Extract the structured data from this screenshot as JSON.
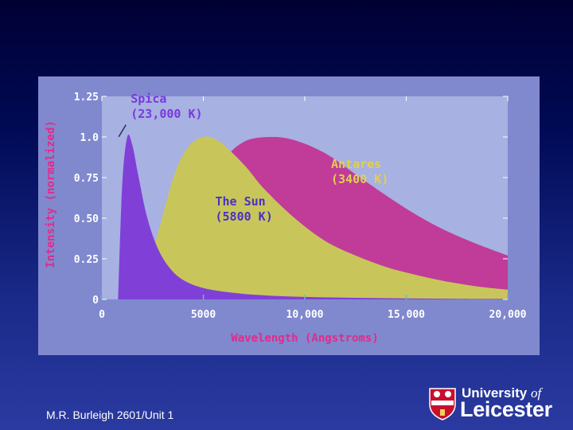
{
  "chart_data": {
    "type": "area",
    "xlabel": "Wavelength (Angstroms)",
    "ylabel": "Intensity (normalized)",
    "xlim": [
      0,
      20000
    ],
    "ylim": [
      0,
      1.25
    ],
    "x_ticks": [
      "0",
      "5000",
      "10,000",
      "15,000",
      "20,000"
    ],
    "x_tick_values": [
      0,
      5000,
      10000,
      15000,
      20000
    ],
    "y_ticks": [
      "0",
      "0.25",
      "0.50",
      "0.75",
      "1.0",
      "1.25"
    ],
    "y_tick_values": [
      0,
      0.25,
      0.5,
      0.75,
      1.0,
      1.25
    ],
    "grid": false,
    "series": [
      {
        "name": "Antares",
        "color": "#c03c98",
        "x": [
          2500,
          4000,
          5000,
          6000,
          7000,
          8300,
          9500,
          11000,
          12500,
          14000,
          15500,
          17000,
          18500,
          20000
        ],
        "values": [
          0.0,
          0.2,
          0.5,
          0.84,
          0.97,
          1.0,
          0.98,
          0.9,
          0.77,
          0.64,
          0.52,
          0.42,
          0.34,
          0.27
        ]
      },
      {
        "name": "The Sun",
        "color": "#c8c65a",
        "x": [
          1500,
          2500,
          3500,
          4200,
          5000,
          5800,
          7000,
          8000,
          9500,
          11000,
          12500,
          14000,
          15500,
          17000,
          18500,
          20000
        ],
        "values": [
          0.0,
          0.3,
          0.74,
          0.93,
          1.0,
          0.97,
          0.83,
          0.68,
          0.5,
          0.36,
          0.27,
          0.2,
          0.15,
          0.11,
          0.08,
          0.06
        ]
      },
      {
        "name": "Spica",
        "color": "#8040d8",
        "x": [
          800,
          1000,
          1250,
          1500,
          1800,
          2200,
          2700,
          3300,
          4000,
          5000,
          6500,
          8000,
          10000,
          12500,
          15000,
          17500,
          20000
        ],
        "values": [
          0.0,
          0.7,
          1.0,
          0.95,
          0.76,
          0.52,
          0.33,
          0.2,
          0.12,
          0.07,
          0.04,
          0.025,
          0.015,
          0.01,
          0.006,
          0.004,
          0.003
        ]
      }
    ],
    "annotations": [
      {
        "text_lines": [
          "Spica",
          "(23,000 K)"
        ],
        "color": "#7a38e0",
        "anchor_x": 1500,
        "anchor_y": 1.05
      },
      {
        "text_lines": [
          "The Sun",
          "(5800 K)"
        ],
        "color": "#4a30c8",
        "anchor_x": 7000,
        "anchor_y": 0.5
      },
      {
        "text_lines": [
          "Antares",
          "(3400 K)"
        ],
        "color": "#e0d050",
        "anchor_x": 12000,
        "anchor_y": 0.7
      }
    ]
  },
  "footer": {
    "credit": "M.R. Burleigh 2601/Unit 1"
  },
  "logo": {
    "line1_a": "University",
    "line1_b": "of",
    "line2": "Leicester",
    "primary_color": "#c8102e"
  }
}
